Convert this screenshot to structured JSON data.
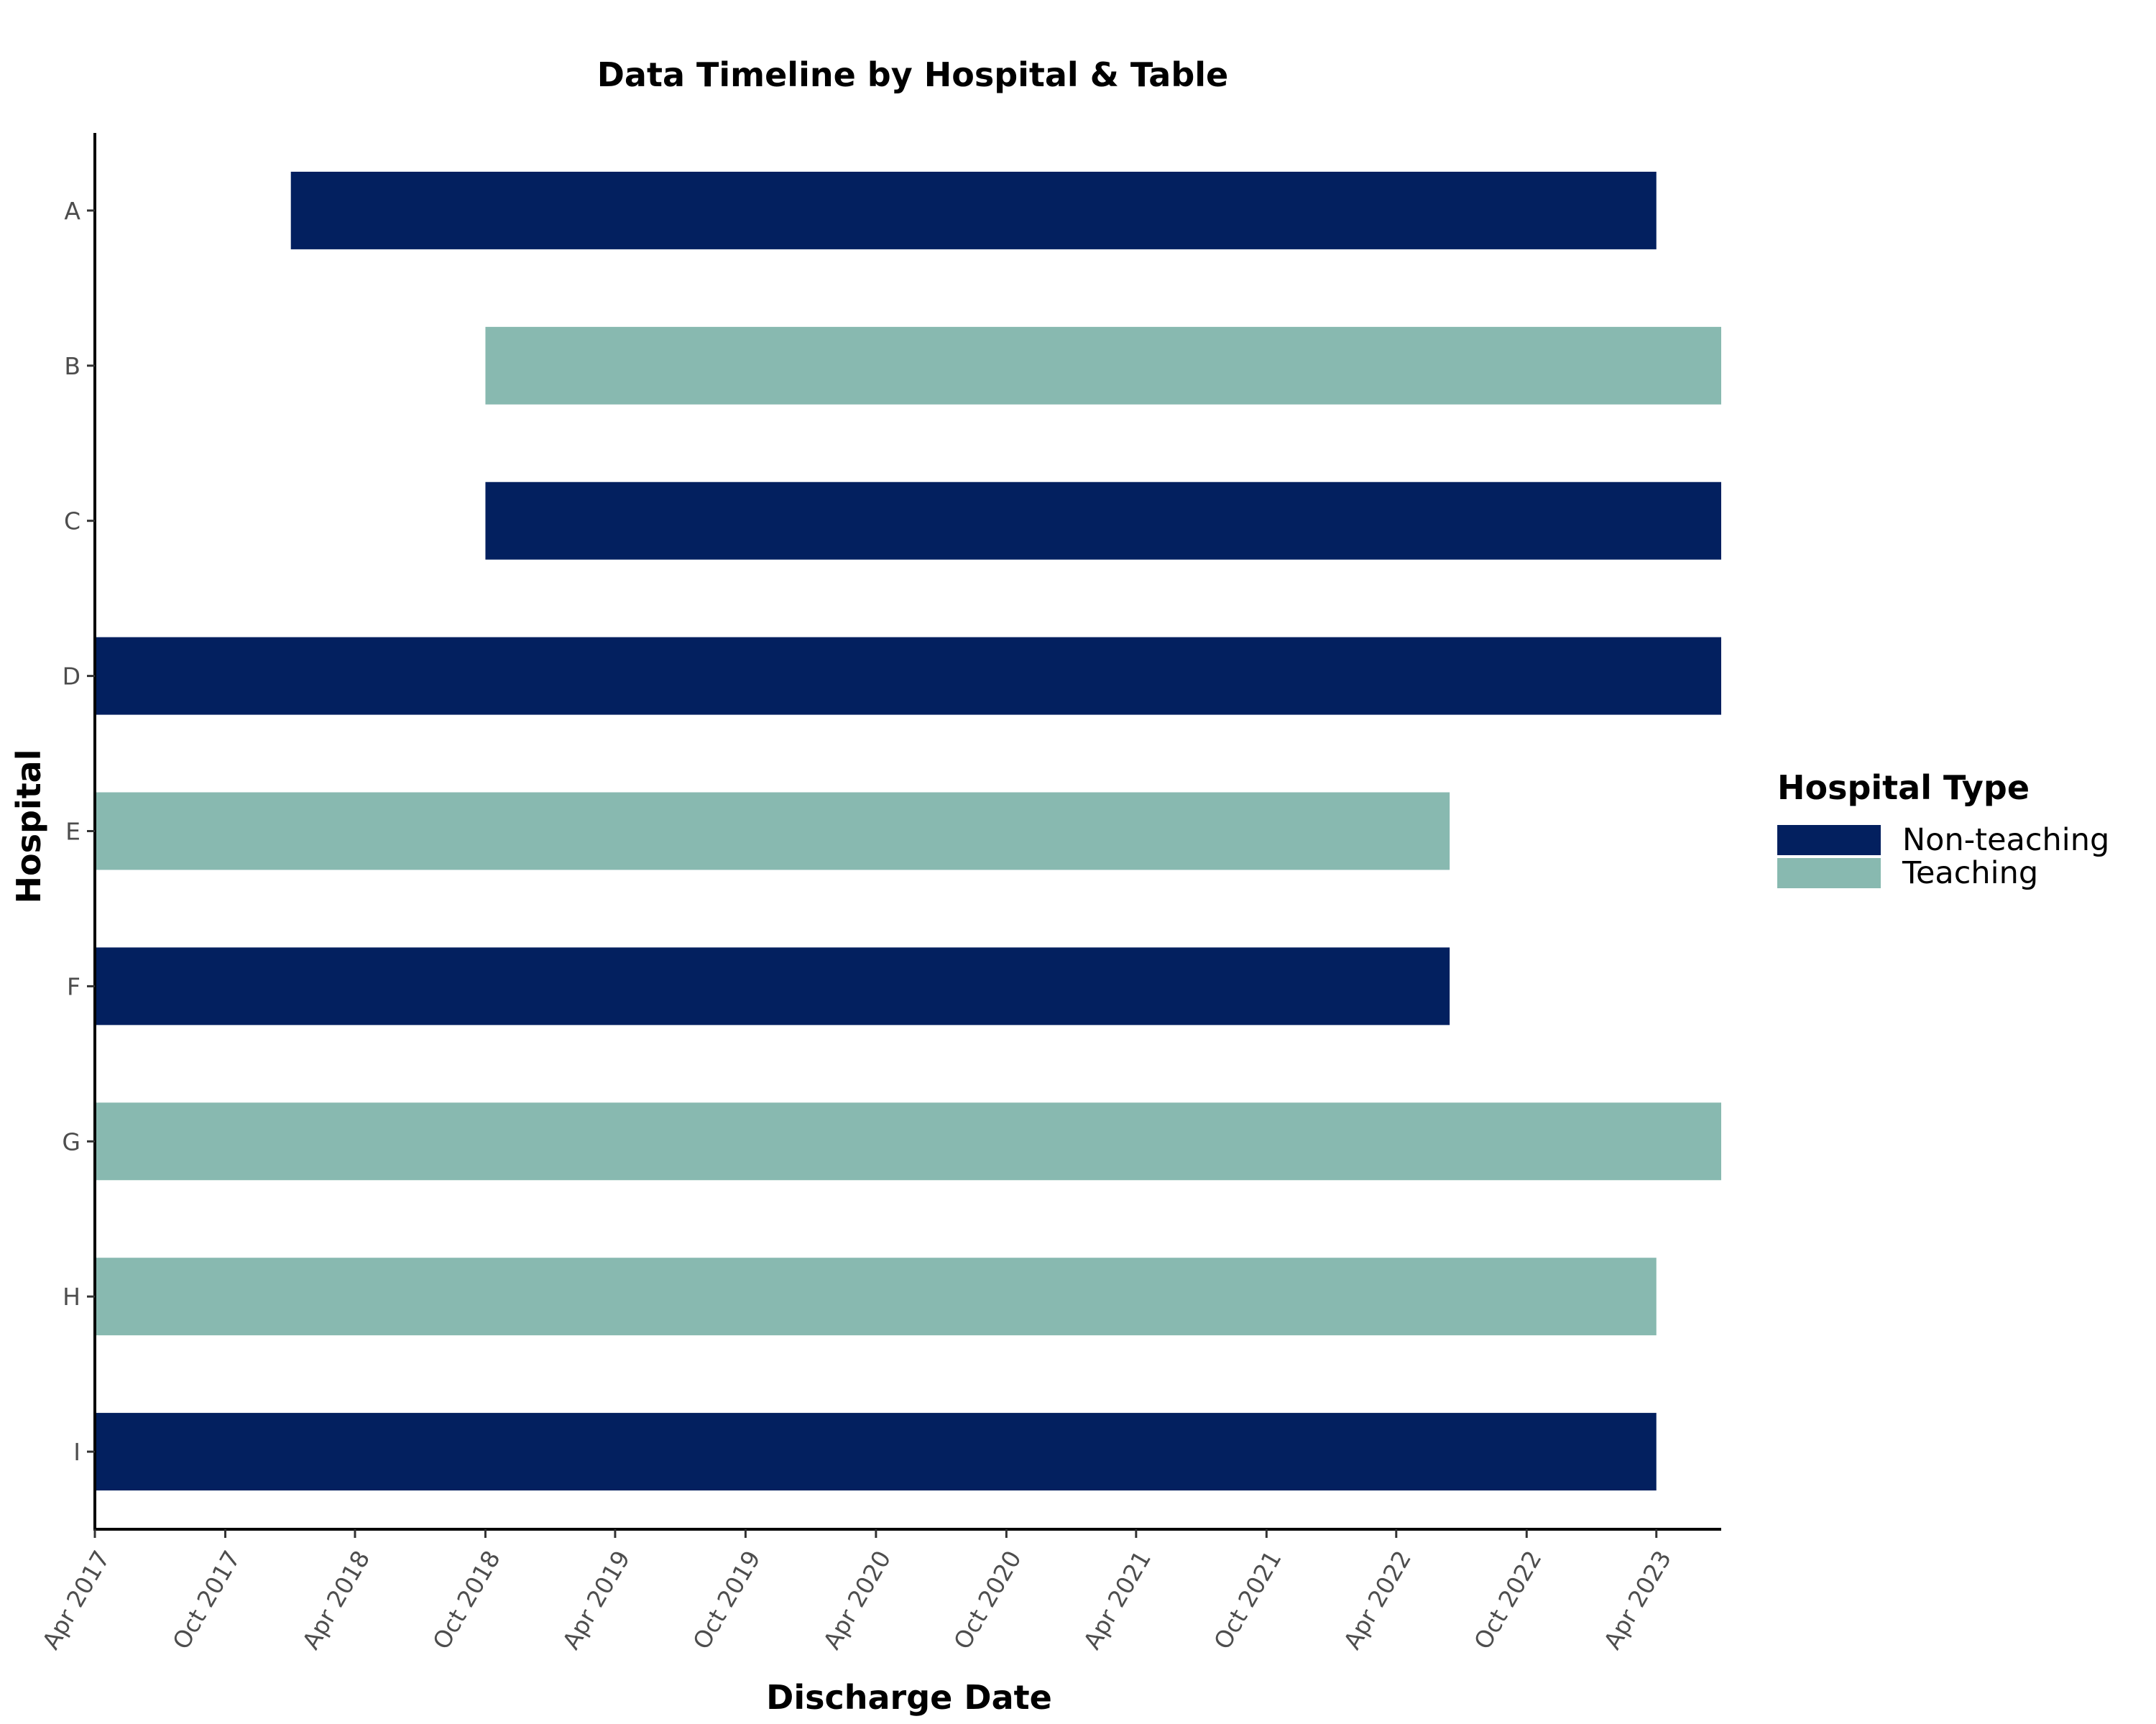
{
  "chart_data": {
    "type": "bar",
    "orientation": "horizontal",
    "title": "Data Timeline by Hospital & Table",
    "xlabel": "Discharge Date",
    "ylabel": "Hospital",
    "xlim": [
      "2017-04-01",
      "2023-07-01"
    ],
    "x_ticks": [
      "Apr 2017",
      "Oct 2017",
      "Apr 2018",
      "Oct 2018",
      "Apr 2019",
      "Oct 2019",
      "Apr 2020",
      "Oct 2020",
      "Apr 2021",
      "Oct 2021",
      "Apr 2022",
      "Oct 2022",
      "Apr 2023"
    ],
    "x_tick_dates": [
      "2017-04-01",
      "2017-10-01",
      "2018-04-01",
      "2018-10-01",
      "2019-04-01",
      "2019-10-01",
      "2020-04-01",
      "2020-10-01",
      "2021-04-01",
      "2021-10-01",
      "2022-04-01",
      "2022-10-01",
      "2023-04-01"
    ],
    "categories": [
      "A",
      "B",
      "C",
      "D",
      "E",
      "F",
      "G",
      "H",
      "I"
    ],
    "bars": [
      {
        "hospital": "A",
        "start": "2018-01-01",
        "end": "2023-04-01",
        "type": "Non-teaching"
      },
      {
        "hospital": "B",
        "start": "2018-10-01",
        "end": "2023-07-01",
        "type": "Teaching"
      },
      {
        "hospital": "C",
        "start": "2018-10-01",
        "end": "2023-07-01",
        "type": "Non-teaching"
      },
      {
        "hospital": "D",
        "start": "2017-04-01",
        "end": "2023-07-01",
        "type": "Non-teaching"
      },
      {
        "hospital": "E",
        "start": "2017-04-01",
        "end": "2022-06-15",
        "type": "Teaching"
      },
      {
        "hospital": "F",
        "start": "2017-04-01",
        "end": "2022-06-15",
        "type": "Non-teaching"
      },
      {
        "hospital": "G",
        "start": "2017-04-01",
        "end": "2023-07-01",
        "type": "Teaching"
      },
      {
        "hospital": "H",
        "start": "2017-04-01",
        "end": "2023-04-01",
        "type": "Teaching"
      },
      {
        "hospital": "I",
        "start": "2017-04-01",
        "end": "2023-04-01",
        "type": "Non-teaching"
      }
    ],
    "legend": {
      "title": "Hospital Type",
      "position": "right",
      "entries": [
        {
          "label": "Non-teaching",
          "color": "#03205f"
        },
        {
          "label": "Teaching",
          "color": "#88b9b0"
        }
      ]
    },
    "grid": false
  }
}
